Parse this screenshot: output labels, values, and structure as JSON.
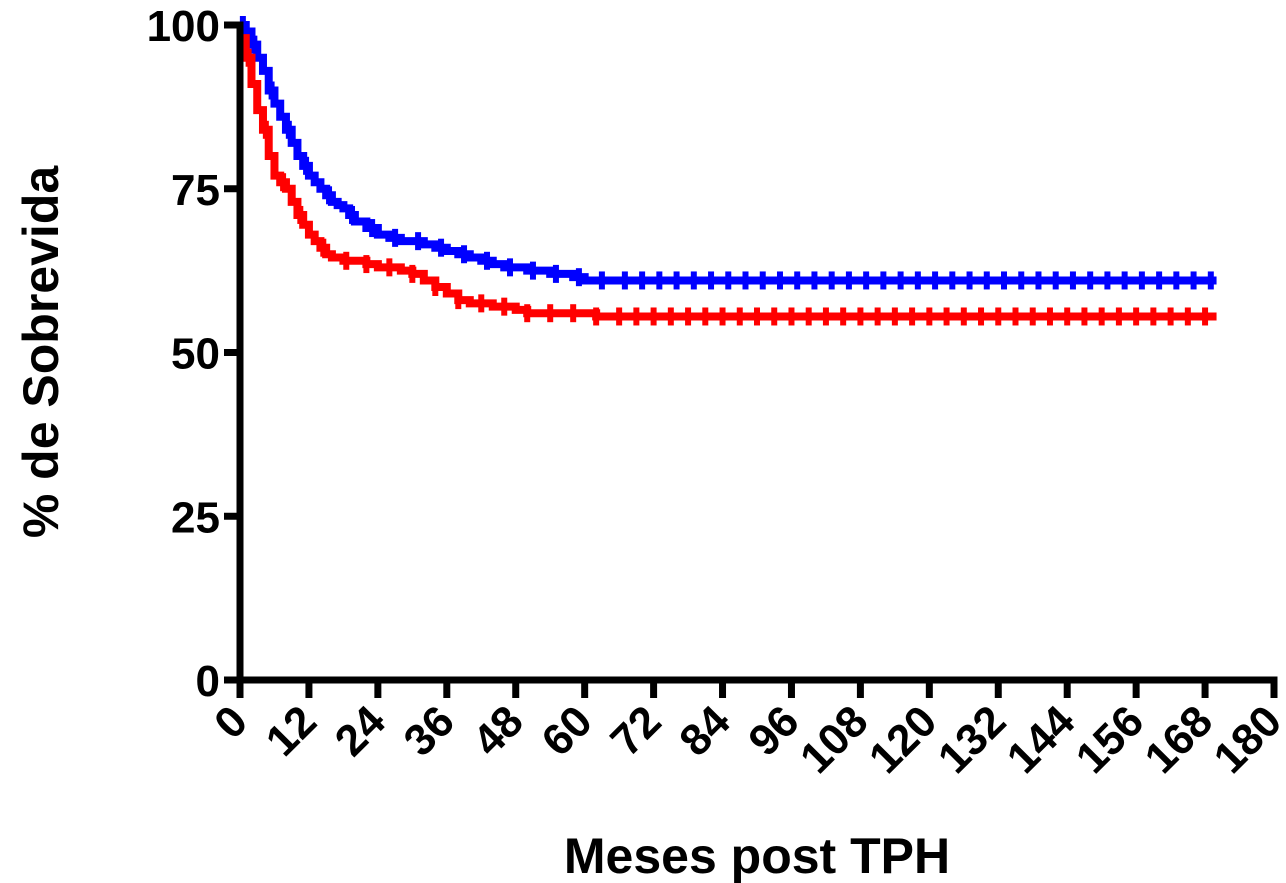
{
  "chart_data": {
    "type": "line",
    "title": "",
    "xlabel": "Meses post TPH",
    "ylabel": "% de Sobrevida",
    "xlim": [
      0,
      180
    ],
    "ylim": [
      0,
      100
    ],
    "x_ticks": [
      "0",
      "12",
      "24",
      "36",
      "48",
      "60",
      "72",
      "84",
      "96",
      "108",
      "120",
      "132",
      "144",
      "156",
      "168",
      "180"
    ],
    "y_ticks": [
      "0",
      "25",
      "50",
      "75",
      "100"
    ],
    "grid": false,
    "legend": "none",
    "step": true,
    "series": [
      {
        "color": "#0000ff",
        "x": [
          0,
          1,
          2,
          3,
          4,
          5,
          6,
          7,
          8,
          9,
          10,
          11,
          12,
          13,
          14,
          15,
          16,
          17,
          18,
          19,
          20,
          22,
          24,
          26,
          28,
          30,
          32,
          34,
          36,
          38,
          40,
          42,
          44,
          46,
          48,
          50,
          52,
          54,
          56,
          58,
          60,
          62,
          64,
          70,
          80,
          90,
          100,
          120,
          140,
          160,
          170
        ],
        "y": [
          100,
          99,
          97,
          95,
          93,
          90,
          88,
          86,
          84,
          82,
          80,
          78.5,
          77,
          76,
          75,
          74,
          73,
          72.5,
          72,
          71,
          70,
          69,
          68,
          67.5,
          67,
          67,
          66.5,
          66,
          65.5,
          65,
          64.5,
          64,
          63.5,
          63,
          63,
          62.5,
          62.5,
          62,
          62,
          61.5,
          61,
          61,
          61,
          61,
          61,
          61,
          61,
          61,
          61,
          61,
          61
        ],
        "censor_x": [
          0.5,
          2.5,
          5.5,
          8.5,
          11.5,
          15.5,
          19.5,
          23,
          27,
          31,
          35,
          39,
          43,
          47,
          51,
          55,
          59,
          63,
          67,
          70,
          73,
          76,
          79,
          82,
          85,
          88,
          91,
          94,
          97,
          100,
          103,
          106,
          109,
          112,
          115,
          118,
          121,
          124,
          127,
          130,
          133,
          136,
          139,
          142,
          145,
          148,
          151,
          154,
          157,
          160,
          163,
          166,
          169
        ]
      },
      {
        "color": "#ff0000",
        "x": [
          0,
          1,
          2,
          3,
          4,
          5,
          6,
          7,
          8,
          9,
          10,
          11,
          12,
          13,
          14,
          15,
          16,
          18,
          20,
          22,
          24,
          26,
          28,
          30,
          32,
          34,
          36,
          38,
          40,
          42,
          44,
          46,
          48,
          50,
          52,
          54,
          56,
          58,
          60,
          62,
          64,
          66,
          70,
          80,
          90,
          100,
          120,
          140,
          160,
          170
        ],
        "y": [
          98,
          95,
          91,
          87,
          84,
          80,
          77,
          76,
          75,
          73,
          71,
          69.5,
          68,
          67,
          66,
          65,
          64.5,
          64,
          64,
          63.5,
          63,
          63,
          62.5,
          62,
          61,
          60,
          59,
          58,
          57.5,
          57.5,
          57,
          57,
          56.5,
          56,
          56,
          56,
          56,
          56,
          56,
          55.5,
          55.5,
          55.5,
          55.5,
          55.5,
          55.5,
          55.5,
          55.5,
          55.5,
          55.5,
          55.5
        ],
        "censor_x": [
          1.5,
          4.5,
          7.5,
          10.5,
          14.5,
          18.5,
          22,
          26,
          30,
          34,
          38,
          42,
          46,
          50,
          54,
          58,
          62,
          66,
          69,
          72,
          75,
          78,
          81,
          84,
          87,
          90,
          93,
          96,
          99,
          102,
          105,
          108,
          111,
          114,
          117,
          120,
          123,
          126,
          129,
          132,
          135,
          138,
          141,
          144,
          147,
          150,
          153,
          156,
          159,
          162,
          165,
          168
        ]
      }
    ]
  }
}
